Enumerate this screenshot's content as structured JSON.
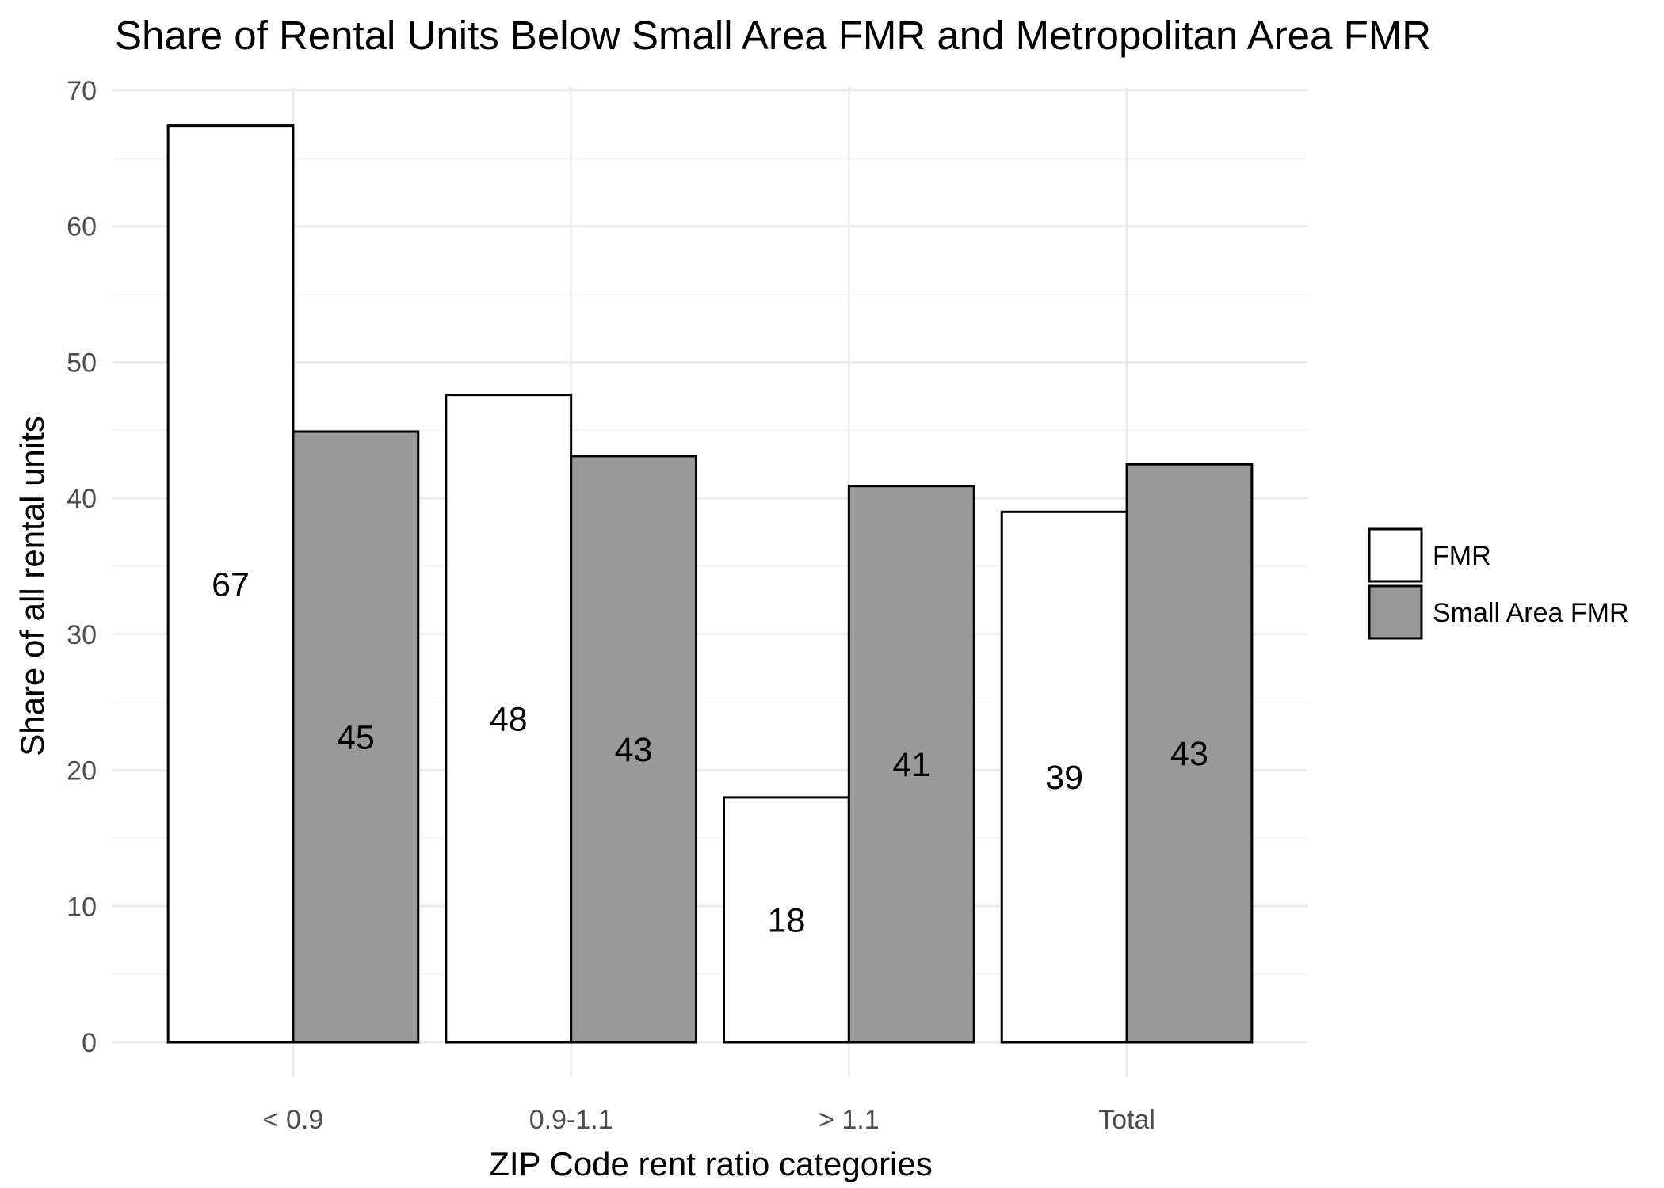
{
  "chart_data": {
    "type": "bar",
    "title": "Share of Rental Units Below Small Area FMR and Metropolitan Area FMR",
    "xlabel": "ZIP Code rent ratio categories",
    "ylabel": "Share of all rental units",
    "categories": [
      "< 0.9",
      "0.9-1.1",
      "> 1.1",
      "Total"
    ],
    "series": [
      {
        "name": "FMR",
        "values": [
          67.4,
          47.6,
          18.0,
          39.0
        ],
        "labels": [
          "67",
          "48",
          "18",
          "39"
        ],
        "color": "#ffffff"
      },
      {
        "name": "Small Area FMR",
        "values": [
          44.9,
          43.1,
          40.9,
          42.5
        ],
        "labels": [
          "45",
          "43",
          "41",
          "43"
        ],
        "color": "#999999"
      }
    ],
    "ylim": [
      0,
      70
    ],
    "yticks": [
      0,
      10,
      20,
      30,
      40,
      50,
      60,
      70
    ],
    "grid": true,
    "legend": "right"
  }
}
